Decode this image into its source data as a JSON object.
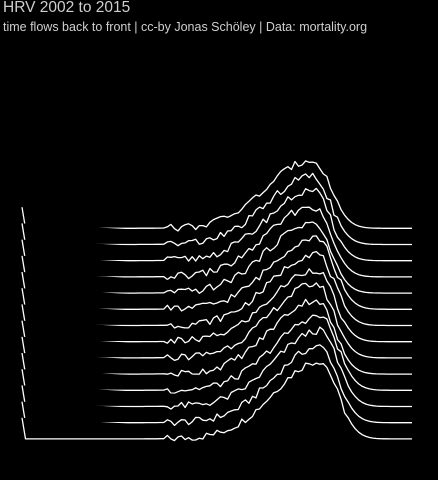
{
  "title": "HRV 2002 to 2015",
  "subtitle": "time flows back to front | cc-by Jonas Schöley | Data: mortality.org",
  "colors": {
    "background": "#000000",
    "line": "#ffffff",
    "text": "#cfcfcf"
  },
  "chart_data": {
    "type": "line",
    "style": "ridgeline",
    "grid": false,
    "legend": "none",
    "x": {
      "start": 0,
      "end": 110,
      "step": 1
    },
    "ylim": [
      0,
      0.05
    ],
    "series": [
      {
        "values_profile": "gompertz-peak",
        "peak_age": 84,
        "peak_value": 0.042,
        "raw_points_profile": "death distribution"
      },
      {
        "peak_age": 84,
        "peak_value": 0.041
      },
      {
        "peak_age": 84,
        "peak_value": 0.041
      },
      {
        "peak_age": 84,
        "peak_value": 0.04
      },
      {
        "peak_age": 83,
        "peak_value": 0.04
      },
      {
        "peak_age": 83,
        "peak_value": 0.04
      },
      {
        "peak_age": 83,
        "peak_value": 0.039
      },
      {
        "peak_age": 83,
        "peak_value": 0.039
      },
      {
        "peak_age": 83,
        "peak_value": 0.039
      },
      {
        "peak_age": 82,
        "peak_value": 0.038
      },
      {
        "peak_age": 82,
        "peak_value": 0.038
      },
      {
        "peak_age": 82,
        "peak_value": 0.038
      },
      {
        "peak_age": 82,
        "peak_value": 0.037
      },
      {
        "peak_age": 82,
        "peak_value": 0.037
      }
    ]
  }
}
